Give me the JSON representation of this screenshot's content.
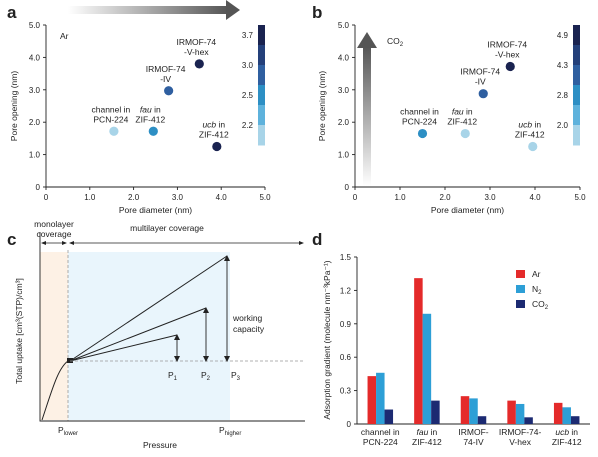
{
  "colors": {
    "dot_dark": "#1a2350",
    "dot_mid": "#2f5fa0",
    "dot_cyan": "#2d8fc4",
    "dot_light": "#a8d4e8",
    "bar_ar": "#e42a2a",
    "bar_n2": "#2d9fd6",
    "bar_co2": "#1c2a72",
    "region_mono": "#fdf1e5",
    "region_multi": "#e9f5fc"
  },
  "chart_data": [
    {
      "panel": "a",
      "type": "scatter",
      "xlabel": "Pore diameter (nm)",
      "ylabel": "Pore opening (nm)",
      "xlim": [
        0,
        5.0
      ],
      "ylim": [
        0,
        5.0
      ],
      "xticks": [
        "0",
        "1.0",
        "2.0",
        "3.0",
        "4.0",
        "5.0"
      ],
      "yticks": [
        "0",
        "1.0",
        "2.0",
        "3.0",
        "4.0",
        "5.0"
      ],
      "arrow_label": "Ar",
      "colorbar_ticks": [
        "3.7",
        "3.0",
        "2.5",
        "2.2"
      ],
      "points": [
        {
          "line1": "channel in",
          "line2": "PCN-224",
          "italic": "",
          "x": 1.55,
          "y": 1.72,
          "color": "#a8d4e8"
        },
        {
          "line1": "in",
          "line2": "ZIF-412",
          "italic": "fau",
          "x": 2.45,
          "y": 1.72,
          "color": "#2d8fc4"
        },
        {
          "line1": "IRMOF-74",
          "line2": "-IV",
          "italic": "",
          "x": 2.8,
          "y": 2.97,
          "color": "#2f5fa0"
        },
        {
          "line1": "IRMOF-74",
          "line2": "-V-hex",
          "italic": "",
          "x": 3.5,
          "y": 3.8,
          "color": "#1a2350"
        },
        {
          "line1": "in",
          "line2": "ZIF-412",
          "italic": "ucb",
          "x": 3.9,
          "y": 1.25,
          "color": "#1a2350"
        }
      ]
    },
    {
      "panel": "b",
      "type": "scatter",
      "xlabel": "Pore diameter (nm)",
      "ylabel": "Pore opening (nm)",
      "xlim": [
        0,
        5.0
      ],
      "ylim": [
        0,
        5.0
      ],
      "xticks": [
        "0",
        "1.0",
        "2.0",
        "3.0",
        "4.0",
        "5.0"
      ],
      "yticks": [
        "0",
        "1.0",
        "2.0",
        "3.0",
        "4.0",
        "5.0"
      ],
      "arrow_label": "CO",
      "arrow_label_sub": "2",
      "colorbar_ticks": [
        "4.9",
        "4.3",
        "2.8",
        "2.0"
      ],
      "points": [
        {
          "line1": "channel in",
          "line2": "PCN-224",
          "italic": "",
          "x": 1.5,
          "y": 1.65,
          "color": "#2d8fc4"
        },
        {
          "line1": "in",
          "line2": "ZIF-412",
          "italic": "fau",
          "x": 2.45,
          "y": 1.65,
          "color": "#a8d4e8"
        },
        {
          "line1": "IRMOF-74",
          "line2": "-IV",
          "italic": "",
          "x": 2.85,
          "y": 2.88,
          "color": "#2f5fa0"
        },
        {
          "line1": "IRMOF-74",
          "line2": "-V-hex",
          "italic": "",
          "x": 3.45,
          "y": 3.72,
          "color": "#1a2350"
        },
        {
          "line1": "in",
          "line2": "ZIF-412",
          "italic": "ucb",
          "x": 3.95,
          "y": 1.25,
          "color": "#a8d4e8"
        }
      ]
    },
    {
      "panel": "c",
      "type": "line",
      "xlabel": "Pressure",
      "ylabel": "Total uptake [cm³(STP)/cm³]",
      "region_left": "monolayer coverage",
      "region_left_lines": [
        "monolayer",
        "coverage"
      ],
      "region_right": "multilayer coverage",
      "annotation": [
        "working",
        "capacity"
      ],
      "x_tick_lower": "P",
      "x_tick_lower_sub": "lower",
      "x_tick_higher": "P",
      "x_tick_higher_sub": "higher",
      "pressure_labels": [
        {
          "t": "P",
          "s": "1"
        },
        {
          "t": "P",
          "s": "2"
        },
        {
          "t": "P",
          "s": "3"
        }
      ]
    },
    {
      "panel": "d",
      "type": "bar",
      "ylabel": "Adsorption gradient (molecule nm⁻³kPa⁻¹)",
      "ylim": [
        0,
        1.5
      ],
      "yticks": [
        "0",
        "0.3",
        "0.6",
        "0.9",
        "1.2",
        "1.5"
      ],
      "categories": [
        {
          "line1": "channel in",
          "line2": "PCN-224",
          "italic": ""
        },
        {
          "line1": "in",
          "line2": "ZIF-412",
          "italic": "fau"
        },
        {
          "line1": "IRMOF-",
          "line2": "74-IV",
          "italic": ""
        },
        {
          "line1": "IRMOF-74-",
          "line2": "V-hex",
          "italic": ""
        },
        {
          "line1": "in",
          "line2": "ZIF-412",
          "italic": "ucb"
        }
      ],
      "series": [
        {
          "name": "Ar",
          "sub": "",
          "color": "#e42a2a",
          "values": [
            0.43,
            1.31,
            0.25,
            0.21,
            0.19
          ]
        },
        {
          "name": "N",
          "sub": "2",
          "color": "#2d9fd6",
          "values": [
            0.46,
            0.99,
            0.23,
            0.18,
            0.15
          ]
        },
        {
          "name": "CO",
          "sub": "2",
          "color": "#1c2a72",
          "values": [
            0.13,
            0.21,
            0.07,
            0.06,
            0.07
          ]
        }
      ]
    }
  ],
  "panel_labels": [
    "a",
    "b",
    "c",
    "d"
  ]
}
